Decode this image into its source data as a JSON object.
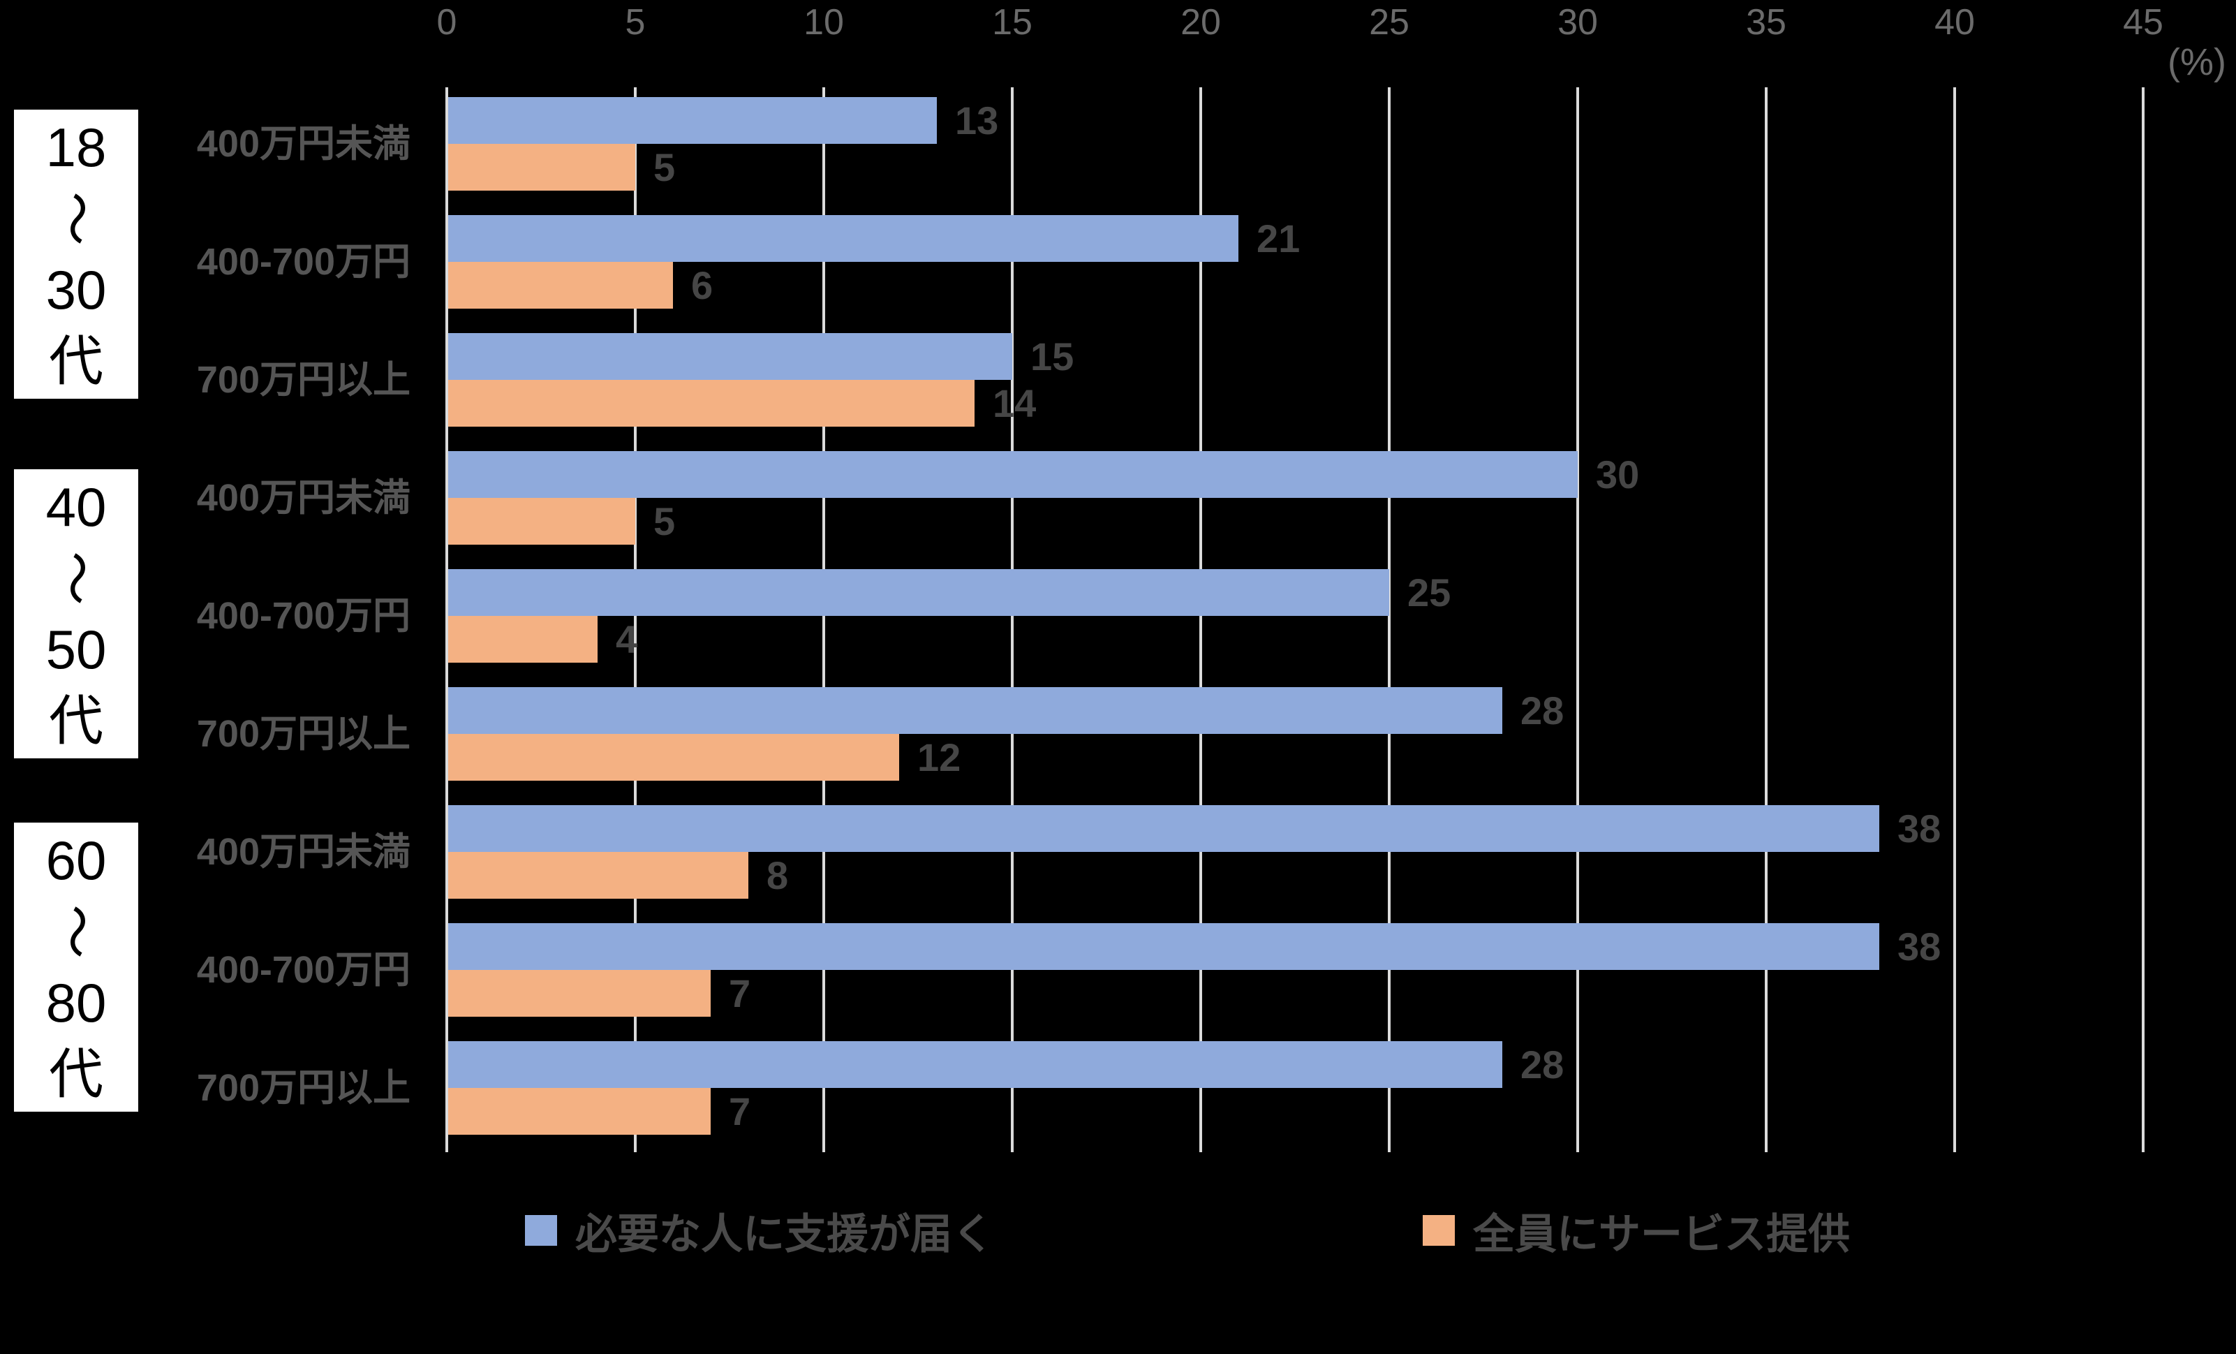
{
  "chart_data": {
    "type": "bar",
    "orientation": "horizontal",
    "unit_label": "(%)",
    "axis": {
      "min": 0,
      "max": 45,
      "tick_step": 5,
      "ticks": [
        0,
        5,
        10,
        15,
        20,
        25,
        30,
        35,
        40,
        45
      ],
      "position": "top",
      "gridlines": true
    },
    "series": [
      {
        "name": "必要な人に支援が届く",
        "color": "#8FAADC"
      },
      {
        "name": "全員にサービス提供",
        "color": "#F4B183"
      }
    ],
    "groups": [
      {
        "label": "18〜30代",
        "label_lines": [
          "18",
          "〜",
          "30",
          "代"
        ],
        "rows": [
          {
            "category": "400万円未満",
            "values": [
              13,
              5
            ]
          },
          {
            "category": "400-700万円",
            "values": [
              21,
              6
            ]
          },
          {
            "category": "700万円以上",
            "values": [
              15,
              14
            ]
          }
        ]
      },
      {
        "label": "40〜50代",
        "label_lines": [
          "40",
          "〜",
          "50",
          "代"
        ],
        "rows": [
          {
            "category": "400万円未満",
            "values": [
              30,
              5
            ]
          },
          {
            "category": "400-700万円",
            "values": [
              25,
              4
            ]
          },
          {
            "category": "700万円以上",
            "values": [
              28,
              12
            ]
          }
        ]
      },
      {
        "label": "60〜80代",
        "label_lines": [
          "60",
          "〜",
          "80",
          "代"
        ],
        "rows": [
          {
            "category": "400万円未満",
            "values": [
              38,
              8
            ]
          },
          {
            "category": "400-700万円",
            "values": [
              38,
              7
            ]
          },
          {
            "category": "700万円以上",
            "values": [
              28,
              7
            ]
          }
        ]
      }
    ],
    "colors": {
      "background": "#000000",
      "gridline": "#DBDBDB",
      "tick_text": "#6B6B6B",
      "category_text": "#555555",
      "data_label_text": "#464646",
      "legend_text": "#4A4A4A",
      "group_box_bg": "#FFFFFF",
      "group_box_text": "#000000",
      "series_blue": "#8FAADC",
      "series_orange": "#F4B183"
    }
  }
}
